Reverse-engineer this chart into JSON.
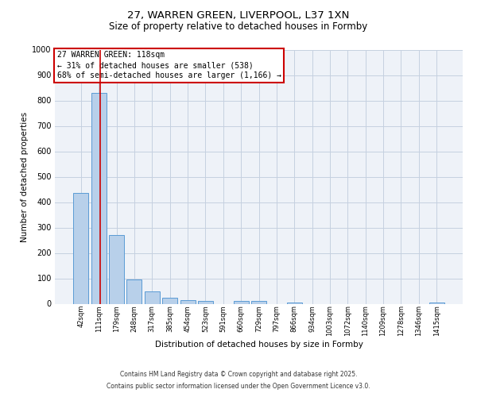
{
  "title_line1": "27, WARREN GREEN, LIVERPOOL, L37 1XN",
  "title_line2": "Size of property relative to detached houses in Formby",
  "xlabel": "Distribution of detached houses by size in Formby",
  "ylabel": "Number of detached properties",
  "bin_labels": [
    "42sqm",
    "111sqm",
    "179sqm",
    "248sqm",
    "317sqm",
    "385sqm",
    "454sqm",
    "523sqm",
    "591sqm",
    "660sqm",
    "729sqm",
    "797sqm",
    "866sqm",
    "934sqm",
    "1003sqm",
    "1072sqm",
    "1140sqm",
    "1209sqm",
    "1278sqm",
    "1346sqm",
    "1415sqm"
  ],
  "bar_heights": [
    435,
    830,
    270,
    95,
    50,
    25,
    15,
    10,
    0,
    10,
    10,
    0,
    5,
    0,
    0,
    0,
    0,
    0,
    0,
    0,
    5
  ],
  "bar_color": "#b8d0ea",
  "bar_edge_color": "#5b9bd5",
  "ylim": [
    0,
    1000
  ],
  "yticks": [
    0,
    100,
    200,
    300,
    400,
    500,
    600,
    700,
    800,
    900,
    1000
  ],
  "annotation_text": "27 WARREN GREEN: 118sqm\n← 31% of detached houses are smaller (538)\n68% of semi-detached houses are larger (1,166) →",
  "annotation_box_color": "#ffffff",
  "annotation_border_color": "#cc0000",
  "footer_line1": "Contains HM Land Registry data © Crown copyright and database right 2025.",
  "footer_line2": "Contains public sector information licensed under the Open Government Licence v3.0.",
  "background_color": "#eef2f8",
  "grid_color": "#c5d0e0"
}
